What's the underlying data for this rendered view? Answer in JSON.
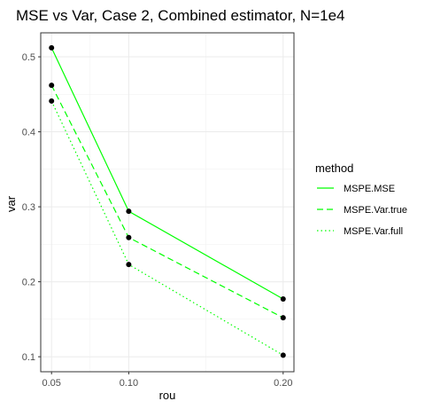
{
  "chart_data": {
    "type": "line",
    "title": "MSE vs Var, Case 2, Combined estimator, N=1e4",
    "xlabel": "rou",
    "ylabel": "var",
    "x": [
      0.05,
      0.1,
      0.2
    ],
    "x_tick_labels": [
      "0.05",
      "0.10",
      "0.20"
    ],
    "y_ticks": [
      0.1,
      0.2,
      0.3,
      0.4,
      0.5
    ],
    "y_tick_labels": [
      "0.1",
      "0.2",
      "0.3",
      "0.4",
      "0.5"
    ],
    "xlim": [
      0.043,
      0.207
    ],
    "ylim": [
      0.08,
      0.532
    ],
    "grid": true,
    "legend_title": "method",
    "legend_position": "right",
    "series": [
      {
        "name": "MSPE.MSE",
        "values": [
          0.512,
          0.294,
          0.177
        ],
        "color": "#00ff00",
        "dash": "solid"
      },
      {
        "name": "MSPE.Var.true",
        "values": [
          0.462,
          0.259,
          0.152
        ],
        "color": "#00ff00",
        "dash": "dashed"
      },
      {
        "name": "MSPE.Var.full",
        "values": [
          0.441,
          0.223,
          0.102
        ],
        "color": "#00ff00",
        "dash": "dotted"
      }
    ],
    "point_color": "#000000"
  }
}
